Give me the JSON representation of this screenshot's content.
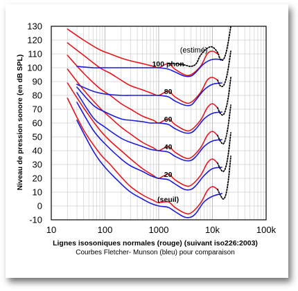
{
  "chart_data": {
    "type": "line",
    "title": "",
    "xlabel": "Lignes isosoniques normales (rouge) (suivant iso226:2003)",
    "xsublabel": "Courbes Fletcher- Munson (bleu) pour comparaison",
    "ylabel": "Niveau de pression sonore (en dB SPL)",
    "xscale": "log",
    "xlim": [
      10,
      100000
    ],
    "ylim": [
      -10,
      130
    ],
    "xticks": [
      10,
      100,
      1000,
      10000,
      100000
    ],
    "xtick_labels": [
      "10",
      "100",
      "1000",
      "10k",
      "100k"
    ],
    "yticks": [
      -10,
      0,
      10,
      20,
      30,
      40,
      50,
      60,
      70,
      80,
      90,
      100,
      110,
      120,
      130
    ],
    "ytick_labels": [
      "-10",
      "0",
      "10",
      "20",
      "30",
      "40",
      "50",
      "60",
      "70",
      "80",
      "90",
      "100",
      "110",
      "120",
      "130"
    ],
    "grid": true,
    "colors": {
      "iso226": "#e8141a",
      "fletcher_munson": "#1a1ad8",
      "estimated": "#000000"
    },
    "annotations": [
      {
        "text": "(estimé)",
        "x": 4500,
        "y": 111,
        "bold": false
      },
      {
        "text": "100 phon",
        "x": 1500,
        "y": 101,
        "bold": true
      },
      {
        "text": "80",
        "x": 1500,
        "y": 81,
        "bold": true
      },
      {
        "text": "60",
        "x": 1500,
        "y": 61,
        "bold": true
      },
      {
        "text": "40",
        "x": 1500,
        "y": 41,
        "bold": true
      },
      {
        "text": "20",
        "x": 1500,
        "y": 21,
        "bold": true
      },
      {
        "text": "(seuil)",
        "x": 1500,
        "y": 3,
        "bold": true
      }
    ],
    "series": [
      {
        "type": "iso226",
        "x": [
          20,
          40,
          80,
          125,
          200,
          300,
          500,
          800,
          1000,
          1500,
          2000,
          3000,
          4000,
          6000,
          8000,
          10000,
          12500
        ],
        "values": [
          78,
          55,
          38,
          30,
          21,
          14,
          8,
          4,
          2.4,
          3,
          -1,
          -5,
          -5,
          2,
          11,
          14,
          12
        ]
      },
      {
        "type": "iso226",
        "x": [
          20,
          40,
          80,
          125,
          200,
          300,
          500,
          800,
          1000,
          1500,
          2000,
          3000,
          4000,
          6000,
          8000,
          10000,
          12500
        ],
        "values": [
          89,
          71,
          55,
          47,
          40,
          34,
          27,
          22,
          20,
          23,
          19,
          15,
          15,
          22,
          31,
          34,
          31
        ]
      },
      {
        "type": "iso226",
        "x": [
          20,
          40,
          80,
          125,
          200,
          300,
          500,
          800,
          1000,
          1500,
          2000,
          3000,
          4000,
          6000,
          8000,
          10000,
          12500
        ],
        "values": [
          99,
          84,
          71,
          64,
          57,
          52,
          46,
          42,
          40,
          43,
          39,
          35,
          35,
          42,
          51,
          54,
          51
        ]
      },
      {
        "type": "iso226",
        "x": [
          20,
          40,
          80,
          125,
          200,
          300,
          500,
          800,
          1000,
          1500,
          2000,
          3000,
          4000,
          6000,
          8000,
          10000,
          12500
        ],
        "values": [
          109,
          96,
          85,
          80,
          74,
          70,
          65,
          62,
          60,
          63,
          59,
          55,
          55,
          62,
          71,
          74,
          71
        ]
      },
      {
        "type": "iso226",
        "x": [
          20,
          40,
          80,
          125,
          200,
          300,
          500,
          800,
          1000,
          1500,
          2000,
          3000,
          4000,
          6000,
          8000,
          10000,
          12500
        ],
        "values": [
          118,
          109,
          100,
          96,
          91,
          87,
          84,
          81,
          80,
          83,
          79,
          75,
          75,
          82,
          91,
          93,
          91
        ]
      },
      {
        "type": "iso226",
        "x": [
          20,
          40,
          80,
          125,
          200,
          300,
          500,
          800,
          1000,
          1500,
          2000,
          3000,
          4000,
          6000,
          8000,
          10000,
          12500
        ],
        "values": [
          128,
          120,
          113,
          110,
          107,
          105,
          103,
          101,
          100,
          103,
          99,
          95,
          95,
          101,
          110,
          112,
          110
        ]
      },
      {
        "type": "fletcher_munson",
        "x": [
          30,
          60,
          100,
          200,
          300,
          500,
          700,
          1000,
          1500,
          2000,
          3000,
          4000,
          5000,
          7000,
          10000,
          15000
        ],
        "values": [
          62,
          40,
          28,
          16,
          10,
          5,
          2,
          0,
          -1,
          -4,
          -8,
          -8,
          -5,
          3,
          7,
          9
        ]
      },
      {
        "type": "fletcher_munson",
        "x": [
          30,
          60,
          100,
          200,
          300,
          500,
          700,
          1000,
          1500,
          2000,
          3000,
          4000,
          5000,
          7000,
          10000,
          15000
        ],
        "values": [
          75,
          55,
          45,
          34,
          29,
          25,
          22,
          20,
          19,
          16,
          12,
          12,
          15,
          22,
          27,
          28
        ]
      },
      {
        "type": "fletcher_munson",
        "x": [
          30,
          60,
          100,
          200,
          300,
          500,
          700,
          1000,
          1500,
          2000,
          3000,
          4000,
          5000,
          7000,
          10000,
          15000
        ],
        "values": [
          82,
          64,
          57,
          49,
          46,
          43,
          41,
          40,
          39,
          36,
          33,
          33,
          36,
          43,
          47,
          48
        ]
      },
      {
        "type": "fletcher_munson",
        "x": [
          30,
          60,
          100,
          200,
          300,
          500,
          700,
          1000,
          1500,
          2000,
          3000,
          4000,
          5000,
          7000,
          10000,
          15000
        ],
        "values": [
          86,
          73,
          68,
          63,
          62,
          61,
          60,
          60,
          59,
          56,
          53,
          53,
          56,
          63,
          67,
          68
        ]
      },
      {
        "type": "fletcher_munson",
        "x": [
          30,
          60,
          100,
          200,
          300,
          500,
          700,
          1000,
          1500,
          2000,
          3000,
          4000,
          5000,
          7000,
          10000,
          15000
        ],
        "values": [
          88,
          83,
          81,
          80,
          80,
          80,
          80,
          80,
          79,
          76,
          73,
          73,
          77,
          84,
          88,
          89
        ]
      },
      {
        "type": "fletcher_munson",
        "x": [
          30,
          60,
          100,
          200,
          300,
          500,
          700,
          1000,
          1500,
          2000,
          3000,
          4000,
          5000,
          7000,
          10000,
          15000
        ],
        "values": [
          101,
          100,
          100,
          100,
          100,
          100,
          100,
          100,
          99,
          97,
          94,
          94,
          97,
          103,
          106,
          106
        ]
      },
      {
        "type": "estimated",
        "x": [
          1500,
          2000,
          3000,
          4000,
          5000,
          6000,
          8000,
          10000,
          12500,
          14000,
          16000,
          18000,
          20000,
          22000
        ],
        "values": [
          103,
          103,
          102,
          101,
          103,
          109,
          114,
          115,
          111,
          106,
          106,
          111,
          120,
          130
        ]
      },
      {
        "type": "estimated",
        "x": [
          12500,
          14000,
          16000,
          18000,
          20000,
          22000
        ],
        "values": [
          91,
          87,
          87,
          92,
          101,
          112
        ]
      },
      {
        "type": "estimated",
        "x": [
          12500,
          14000,
          16000,
          18000,
          20000,
          22000
        ],
        "values": [
          71,
          67,
          66,
          71,
          80,
          93
        ]
      },
      {
        "type": "estimated",
        "x": [
          12500,
          14000,
          16000,
          18000,
          20000,
          22000
        ],
        "values": [
          51,
          47,
          45,
          50,
          60,
          73
        ]
      },
      {
        "type": "estimated",
        "x": [
          12500,
          14000,
          16000,
          18000,
          20000,
          22000
        ],
        "values": [
          31,
          27,
          25,
          29,
          39,
          53
        ]
      },
      {
        "type": "estimated",
        "x": [
          12500,
          14000,
          16000,
          18000,
          20000,
          22000
        ],
        "values": [
          12,
          8,
          5,
          9,
          20,
          36
        ]
      }
    ]
  }
}
